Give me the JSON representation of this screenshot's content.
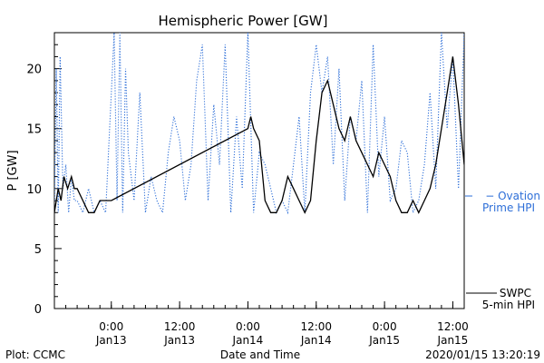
{
  "chart_data": {
    "type": "line",
    "title": "Hemispheric Power [GW]",
    "xlabel": "Date and Time",
    "ylabel": "P [GW]",
    "ylim": [
      0,
      23
    ],
    "xlim": [
      "2020-01-12T14:00",
      "2020-01-15T14:00"
    ],
    "yticks": [
      0,
      5,
      10,
      15,
      20
    ],
    "xticks": [
      {
        "t": "2020-01-13T00:00",
        "l1": "0:00",
        "l2": "Jan13"
      },
      {
        "t": "2020-01-13T12:00",
        "l1": "12:00",
        "l2": "Jan13"
      },
      {
        "t": "2020-01-14T00:00",
        "l1": "0:00",
        "l2": "Jan14"
      },
      {
        "t": "2020-01-14T12:00",
        "l1": "12:00",
        "l2": "Jan14"
      },
      {
        "t": "2020-01-15T00:00",
        "l1": "0:00",
        "l2": "Jan15"
      },
      {
        "t": "2020-01-15T12:00",
        "l1": "12:00",
        "l2": "Jan15"
      }
    ],
    "series": [
      {
        "name": "SWPC 5-min HPI",
        "color": "#000000",
        "style": "solid",
        "x": [
          "2020-01-12T14:00",
          "2020-01-12T14:40",
          "2020-01-12T15:10",
          "2020-01-12T15:40",
          "2020-01-12T16:20",
          "2020-01-12T17:00",
          "2020-01-12T17:30",
          "2020-01-12T18:00",
          "2020-01-12T19:00",
          "2020-01-12T20:00",
          "2020-01-12T21:00",
          "2020-01-12T22:00",
          "2020-01-12T23:00",
          "2020-01-13T00:00",
          "2020-01-14T00:00",
          "2020-01-14T00:30",
          "2020-01-14T01:00",
          "2020-01-14T02:00",
          "2020-01-14T03:00",
          "2020-01-14T04:00",
          "2020-01-14T05:00",
          "2020-01-14T06:00",
          "2020-01-14T07:00",
          "2020-01-14T08:00",
          "2020-01-14T09:00",
          "2020-01-14T10:00",
          "2020-01-14T11:00",
          "2020-01-14T12:00",
          "2020-01-14T13:00",
          "2020-01-14T14:00",
          "2020-01-14T15:00",
          "2020-01-14T16:00",
          "2020-01-14T17:00",
          "2020-01-14T18:00",
          "2020-01-14T19:00",
          "2020-01-14T20:00",
          "2020-01-14T21:00",
          "2020-01-14T22:00",
          "2020-01-14T23:00",
          "2020-01-15T00:00",
          "2020-01-15T01:00",
          "2020-01-15T02:00",
          "2020-01-15T03:00",
          "2020-01-15T04:00",
          "2020-01-15T05:00",
          "2020-01-15T06:00",
          "2020-01-15T07:00",
          "2020-01-15T08:00",
          "2020-01-15T09:00",
          "2020-01-15T10:00",
          "2020-01-15T11:00",
          "2020-01-15T12:00",
          "2020-01-15T13:00",
          "2020-01-15T14:00"
        ],
        "y": [
          8,
          10,
          9,
          11,
          10,
          11,
          10,
          10,
          9,
          8,
          8,
          9,
          9,
          9,
          15,
          16,
          15,
          14,
          9,
          8,
          8,
          9,
          11,
          10,
          9,
          8,
          9,
          14,
          18,
          19,
          17,
          15,
          14,
          16,
          14,
          13,
          12,
          11,
          13,
          12,
          11,
          9,
          8,
          8,
          9,
          8,
          9,
          10,
          12,
          15,
          18,
          21,
          17,
          12
        ]
      },
      {
        "name": "Ovation Prime HPI",
        "color": "#2e6fd8",
        "style": "dotted",
        "x": [
          "2020-01-12T14:00",
          "2020-01-12T14:20",
          "2020-01-12T14:40",
          "2020-01-12T15:00",
          "2020-01-12T15:30",
          "2020-01-12T16:00",
          "2020-01-12T16:30",
          "2020-01-12T17:00",
          "2020-01-12T17:30",
          "2020-01-12T18:00",
          "2020-01-12T19:00",
          "2020-01-12T20:00",
          "2020-01-12T21:00",
          "2020-01-12T22:00",
          "2020-01-12T23:00",
          "2020-01-13T00:00",
          "2020-01-13T00:30",
          "2020-01-13T01:00",
          "2020-01-13T01:30",
          "2020-01-13T02:00",
          "2020-01-13T02:30",
          "2020-01-13T03:00",
          "2020-01-13T04:00",
          "2020-01-13T05:00",
          "2020-01-13T06:00",
          "2020-01-13T07:00",
          "2020-01-13T08:00",
          "2020-01-13T09:00",
          "2020-01-13T10:00",
          "2020-01-13T11:00",
          "2020-01-13T12:00",
          "2020-01-13T13:00",
          "2020-01-13T14:00",
          "2020-01-13T15:00",
          "2020-01-13T16:00",
          "2020-01-13T17:00",
          "2020-01-13T18:00",
          "2020-01-13T19:00",
          "2020-01-13T20:00",
          "2020-01-13T21:00",
          "2020-01-13T22:00",
          "2020-01-13T23:00",
          "2020-01-14T00:00",
          "2020-01-14T01:00",
          "2020-01-14T02:00",
          "2020-01-14T03:00",
          "2020-01-14T04:00",
          "2020-01-14T05:00",
          "2020-01-14T06:00",
          "2020-01-14T07:00",
          "2020-01-14T08:00",
          "2020-01-14T09:00",
          "2020-01-14T10:00",
          "2020-01-14T11:00",
          "2020-01-14T12:00",
          "2020-01-14T13:00",
          "2020-01-14T14:00",
          "2020-01-14T15:00",
          "2020-01-14T16:00",
          "2020-01-14T17:00",
          "2020-01-14T18:00",
          "2020-01-14T19:00",
          "2020-01-14T20:00",
          "2020-01-14T21:00",
          "2020-01-14T22:00",
          "2020-01-14T23:00",
          "2020-01-15T00:00",
          "2020-01-15T01:00",
          "2020-01-15T02:00",
          "2020-01-15T03:00",
          "2020-01-15T04:00",
          "2020-01-15T05:00",
          "2020-01-15T06:00",
          "2020-01-15T07:00",
          "2020-01-15T08:00",
          "2020-01-15T09:00",
          "2020-01-15T10:00",
          "2020-01-15T11:00",
          "2020-01-15T12:00",
          "2020-01-15T13:00",
          "2020-01-15T14:00"
        ],
        "y": [
          9,
          20,
          8,
          21,
          10,
          12,
          8,
          11,
          9,
          9,
          8,
          10,
          8,
          9,
          8,
          18,
          23,
          9,
          23,
          8,
          20,
          13,
          9,
          18,
          8,
          11,
          9,
          8,
          13,
          16,
          14,
          9,
          12,
          19,
          22,
          9,
          17,
          12,
          22,
          8,
          16,
          10,
          23,
          8,
          13,
          12,
          10,
          8,
          9,
          8,
          12,
          16,
          8,
          18,
          22,
          18,
          21,
          12,
          20,
          9,
          16,
          14,
          19,
          8,
          22,
          11,
          16,
          9,
          10,
          14,
          13,
          8,
          9,
          12,
          18,
          10,
          23,
          15,
          21,
          10,
          23
        ]
      }
    ],
    "legend": [
      {
        "name": "SWPC",
        "line2": "5-min HPI",
        "color": "#000000"
      },
      {
        "name": "− Ovation",
        "line2": "Prime HPI",
        "color": "#2e6fd8"
      }
    ],
    "footer_left": "Plot: CCMC",
    "footer_right": "2020/01/15 13:20:19"
  }
}
